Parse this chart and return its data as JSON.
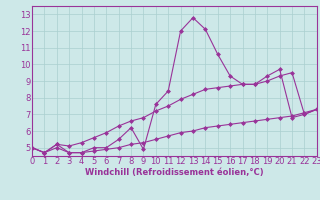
{
  "xlabel": "Windchill (Refroidissement éolien,°C)",
  "background_color": "#cde8e8",
  "grid_color": "#aacfcf",
  "line_color": "#993399",
  "x_data": [
    0,
    1,
    2,
    3,
    4,
    5,
    6,
    7,
    8,
    9,
    10,
    11,
    12,
    13,
    14,
    15,
    16,
    17,
    18,
    19,
    20,
    21,
    22,
    23
  ],
  "y_main": [
    5.0,
    4.7,
    5.2,
    4.7,
    4.7,
    5.0,
    5.0,
    5.5,
    6.2,
    4.9,
    7.6,
    8.4,
    12.0,
    12.8,
    12.1,
    10.6,
    9.3,
    8.8,
    8.8,
    9.3,
    9.7,
    6.8,
    7.0,
    7.3
  ],
  "y_low": [
    5.0,
    4.7,
    5.0,
    4.7,
    4.7,
    4.8,
    4.9,
    5.0,
    5.2,
    5.3,
    5.5,
    5.7,
    5.9,
    6.0,
    6.2,
    6.3,
    6.4,
    6.5,
    6.6,
    6.7,
    6.8,
    6.9,
    7.1,
    7.3
  ],
  "y_high": [
    5.0,
    4.7,
    5.2,
    5.1,
    5.3,
    5.6,
    5.9,
    6.3,
    6.6,
    6.8,
    7.2,
    7.5,
    7.9,
    8.2,
    8.5,
    8.6,
    8.7,
    8.8,
    8.8,
    9.0,
    9.3,
    9.5,
    7.0,
    7.3
  ],
  "xlim": [
    0,
    23
  ],
  "ylim": [
    4.5,
    13.5
  ],
  "yticks": [
    5,
    6,
    7,
    8,
    9,
    10,
    11,
    12,
    13
  ],
  "xticks": [
    0,
    1,
    2,
    3,
    4,
    5,
    6,
    7,
    8,
    9,
    10,
    11,
    12,
    13,
    14,
    15,
    16,
    17,
    18,
    19,
    20,
    21,
    22,
    23
  ],
  "marker": "D",
  "markersize": 2.0,
  "linewidth": 0.8,
  "tick_fontsize": 6.0,
  "xlabel_fontsize": 6.0
}
